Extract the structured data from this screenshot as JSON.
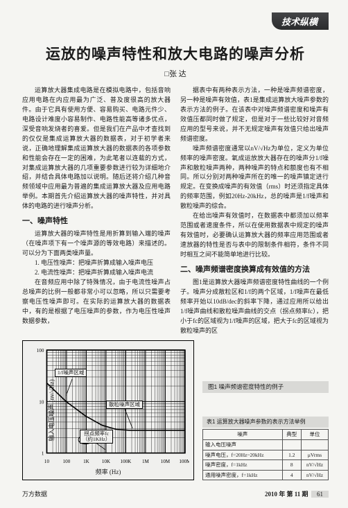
{
  "header": {
    "section": "技术纵横"
  },
  "article": {
    "title": "运放的噪声特性和放大电路的噪声分析",
    "author": "张 达",
    "paragraphs": {
      "intro": "运算放大器集成电路是在模拟电路中，包括音响应用电路在内应用最为广泛、普及度很高的放大器件。由于它具有使用方便、容易购买、电路元件少、电路设计难度小容易制作、电路性能高等诸多优点，深受音响发烧者的喜爱。但是我们在产品中才查找到的仅仅是集成运算放大器的数据表，对于初学者来说，正确地理解集成运算放大器的数据表的各项参数和性能会存在一定的困难，为此笔者以连载的方式，对集成运算放大器的几项重要参数进行较为详细地介绍，并结合具体电路加以说明。随后还将介绍几种音频领域中应用最为普遍的集成运算放大器及应用电路举例。本期首先介绍运算放大器的噪声特性，并对具体的电路的进行噪声分析。",
      "s1_title": "一、噪声特性",
      "s1_p1": "运算放大器的噪声特性是用折算到输入端的噪声（在噪声项下有一个噪声源的等效电路）来描述的。可以分为下面两类噪声量。",
      "s1_li1": "1. 电压性噪声：把噪声折算成输入噪声电压",
      "s1_li2": "2. 电流性噪声：把噪声折算成输入噪声电流",
      "s1_p2": "在音频应用中除了特殊情况，由于电流性噪声占总噪声的比例一般都非常小可以忽略，所以只需要考察电压性噪声即可。在实际的运算放大器的数据表中，有的是根据了电压噪声的参数，作为电压性噪声数据参数，"
    },
    "right": {
      "p1": "据表中有两种表示方法，一种是噪声频谱密度，另一种是噪声有效值，表1是集成运算放大噪声参数的表示方法的例子。在该表中对噪声频谱密度和噪声有效值压都同时做了规定，但是对于一些比较好对音频应用的型号来说，并不无规定噪声有效值只给出噪声频谱密度。",
      "p2": "噪声频谱密度通常以nV/√Hz为单位，定义为单位频率的噪声密度。氧成运放放大器存在的噪声分1/f噪声和散粒噪声两种，两种噪声的特点和额度也有不相同。所以分别对两种噪声所在的唯一的噪声镇定进行规定。在变换成噪声的有效值（rms）时还须指定具体的频率范围，例如20Hz-20kHz，总的噪声是1/f噪声和散粒噪声的综合。",
      "p3": "在给出噪声有效值时，在数据表中都须加以频率范围或者速度条件，所以在使用数据表中规定的噪声有效值时，必要确认运算放大器的频率应用范围或者速放器的特性是否与表中的限制条件相符，条件不同时相互之间不能简单地进行比较。",
      "s2_title": "二、噪声频谱密度换算成有效值的方法",
      "p4": "图1是运算放大器噪声频谱密度特性曲线的一个例子。噪声分成散粒区和1/f的两个区域，1/f噪声在最低频率开始以10dB/dec的斜率下降，通过应用所以给出1/f噪声曲线和散粒噪声曲线的交点（拐点频率fc），把小于fc的区域视为1/f噪声的区域，把大于fc的区域视为散粒噪声的区"
    }
  },
  "figure": {
    "caption": "图1 噪声频谱密度特性的例子",
    "ylabel": "输入电压噪声 (nv/√Hz)",
    "xlabel": "频率 (Hz)",
    "chart": {
      "xticks": [
        10,
        100,
        "1K",
        "10K",
        "100K",
        "1M",
        "10M",
        "100M"
      ],
      "yticks": [
        1,
        10,
        100
      ],
      "curve": [
        [
          0,
          0.68
        ],
        [
          0.14,
          0.5
        ],
        [
          0.28,
          0.36
        ],
        [
          0.4,
          0.27
        ],
        [
          0.5,
          0.23
        ],
        [
          0.6,
          0.22
        ],
        [
          1.0,
          0.22
        ]
      ],
      "shot_y": 0.22,
      "grid_color": "#000000",
      "background": "#f0f0ee",
      "line_color": "#000000",
      "line_width": 1.6
    },
    "labels": {
      "lf": "1/f噪声区域",
      "shot": "散粒噪声区域",
      "fc1": "拐点频率fc",
      "fc2": "（约1KHz）"
    }
  },
  "table": {
    "caption": "表1 运算放大器噪声参数的表示方法举例",
    "head_noise": "噪声",
    "col_typ": "典型",
    "col_unit": "单位",
    "rows": [
      {
        "name": "输入电压噪声",
        "typ": "",
        "unit": ""
      },
      {
        "name": "噪声电压，f=20Hz~20kHz",
        "typ": "1.2",
        "unit": "μVrms"
      },
      {
        "name": "噪声密度，f=1kHz",
        "typ": "8",
        "unit": "nV/√Hz"
      },
      {
        "name": "通用噪声密度，f=1kHz",
        "typ": "4",
        "unit": "nV/√Hz"
      }
    ]
  },
  "footer": {
    "left": "万方数据",
    "issue": "2010 年 第 11 期",
    "page": "61"
  }
}
